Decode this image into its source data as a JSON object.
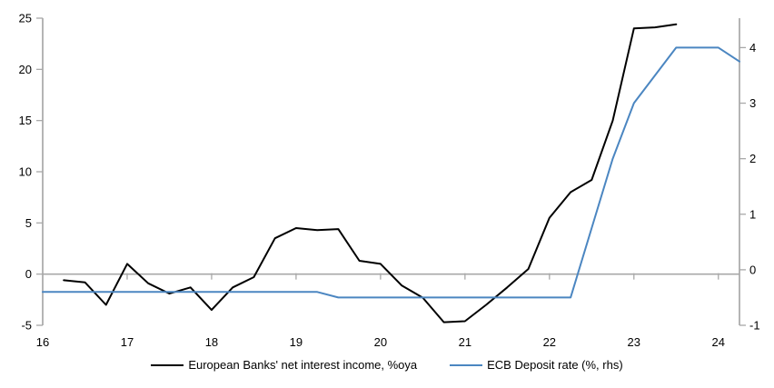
{
  "chart_data": {
    "type": "line",
    "title": "",
    "xlabel": "",
    "ylabel_left": "",
    "ylabel_right": "",
    "grid": "zero-line-only",
    "legend_position": "bottom-center",
    "x_axis": {
      "min": 16,
      "max": 24.25,
      "tick_values": [
        16,
        17,
        18,
        19,
        20,
        21,
        22,
        23,
        24
      ],
      "tick_labels": [
        "16",
        "17",
        "18",
        "19",
        "20",
        "21",
        "22",
        "23",
        "24"
      ]
    },
    "left_axis": {
      "min": -5,
      "max": 25,
      "tick_values": [
        -5,
        0,
        5,
        10,
        15,
        20,
        25
      ],
      "tick_labels": [
        "-5",
        "0",
        "5",
        "10",
        "15",
        "20",
        "25"
      ]
    },
    "right_axis": {
      "min": -1.0,
      "max": 4.53,
      "tick_values": [
        -1,
        0,
        1,
        2,
        3,
        4
      ],
      "tick_labels": [
        "-1",
        "0",
        "1",
        "2",
        "3",
        "4"
      ]
    },
    "colors": {
      "axis": "#a8a8a8",
      "zero_line": "#a8a8a8",
      "black_series": "#000000",
      "blue_series": "#4b86c1",
      "text": "#000000"
    },
    "series": [
      {
        "name": "European Banks' net interest income, %oya",
        "axis": "left",
        "color": "#000000",
        "x": [
          16.25,
          16.5,
          16.75,
          17.0,
          17.25,
          17.5,
          17.75,
          18.0,
          18.25,
          18.5,
          18.75,
          19.0,
          19.25,
          19.5,
          19.75,
          20.0,
          20.25,
          20.5,
          20.75,
          21.0,
          21.25,
          21.5,
          21.75,
          22.0,
          22.25,
          22.5,
          22.75,
          23.0,
          23.25,
          23.5
        ],
        "values": [
          -0.6,
          -0.8,
          -3.0,
          1.0,
          -0.9,
          -1.9,
          -1.3,
          -3.5,
          -1.3,
          -0.3,
          3.5,
          4.5,
          4.3,
          4.4,
          1.3,
          1.0,
          -1.1,
          -2.3,
          -4.7,
          -4.6,
          -3.0,
          -1.3,
          0.5,
          5.5,
          8.0,
          9.2,
          15.0,
          24.0,
          24.1,
          24.4
        ]
      },
      {
        "name": "ECB Deposit rate (%, rhs)",
        "axis": "right",
        "color": "#4b86c1",
        "x": [
          16.0,
          16.25,
          16.5,
          16.75,
          17.0,
          17.25,
          17.5,
          17.75,
          18.0,
          18.25,
          18.5,
          18.75,
          19.0,
          19.25,
          19.5,
          19.75,
          20.0,
          20.25,
          20.5,
          20.75,
          21.0,
          21.25,
          21.5,
          21.75,
          22.0,
          22.25,
          22.5,
          22.75,
          23.0,
          23.25,
          23.5,
          23.75,
          24.0,
          24.25
        ],
        "values": [
          -0.4,
          -0.4,
          -0.4,
          -0.4,
          -0.4,
          -0.4,
          -0.4,
          -0.4,
          -0.4,
          -0.4,
          -0.4,
          -0.4,
          -0.4,
          -0.4,
          -0.5,
          -0.5,
          -0.5,
          -0.5,
          -0.5,
          -0.5,
          -0.5,
          -0.5,
          -0.5,
          -0.5,
          -0.5,
          -0.5,
          0.75,
          2.0,
          3.0,
          3.5,
          4.0,
          4.0,
          4.0,
          3.75
        ]
      }
    ]
  },
  "legend": {
    "items": [
      {
        "label": "European Banks' net interest income, %oya"
      },
      {
        "label": "ECB Deposit rate (%, rhs)"
      }
    ]
  }
}
